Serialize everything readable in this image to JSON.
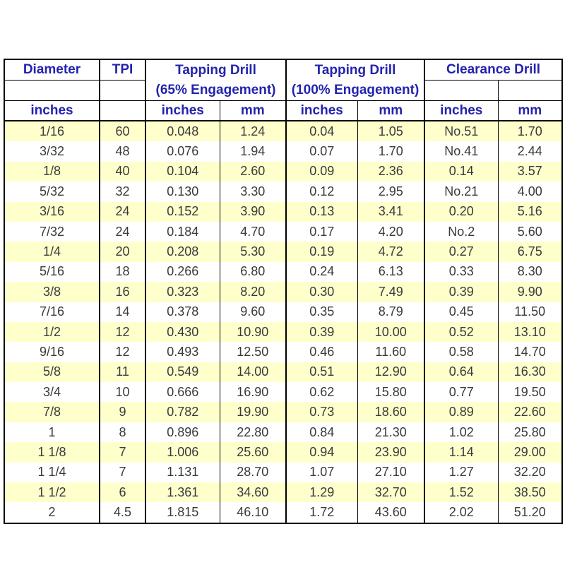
{
  "colors": {
    "header_text_blue": "#2323ae",
    "data_text": "#3a3a3a",
    "row_highlight_yellow": "#ffffcc",
    "grid_line": "#000000",
    "page_background": "#ffffff"
  },
  "chart_data": {
    "type": "table",
    "header": {
      "diameter": "Diameter",
      "tpi": "TPI",
      "tapping_65_title": "Tapping Drill",
      "tapping_65_subtitle": "(65% Engagement)",
      "tapping_100_title": "Tapping Drill",
      "tapping_100_subtitle": "(100% Engagement)",
      "clearance_title": "Clearance Drill",
      "diameter_unit": "inches",
      "unit_inches": "inches",
      "unit_mm": "mm"
    },
    "columns": [
      "Diameter inches",
      "TPI",
      "Tapping Drill (65% Engagement) inches",
      "Tapping Drill (65% Engagement) mm",
      "Tapping Drill (100% Engagement) inches",
      "Tapping Drill (100% Engagement) mm",
      "Clearance Drill inches",
      "Clearance Drill mm"
    ],
    "rows": [
      [
        "1/16",
        "60",
        "0.048",
        "1.24",
        "0.04",
        "1.05",
        "No.51",
        "1.70"
      ],
      [
        "3/32",
        "48",
        "0.076",
        "1.94",
        "0.07",
        "1.70",
        "No.41",
        "2.44"
      ],
      [
        "1/8",
        "40",
        "0.104",
        "2.60",
        "0.09",
        "2.36",
        "0.14",
        "3.57"
      ],
      [
        "5/32",
        "32",
        "0.130",
        "3.30",
        "0.12",
        "2.95",
        "No.21",
        "4.00"
      ],
      [
        "3/16",
        "24",
        "0.152",
        "3.90",
        "0.13",
        "3.41",
        "0.20",
        "5.16"
      ],
      [
        "7/32",
        "24",
        "0.184",
        "4.70",
        "0.17",
        "4.20",
        "No.2",
        "5.60"
      ],
      [
        "1/4",
        "20",
        "0.208",
        "5.30",
        "0.19",
        "4.72",
        "0.27",
        "6.75"
      ],
      [
        "5/16",
        "18",
        "0.266",
        "6.80",
        "0.24",
        "6.13",
        "0.33",
        "8.30"
      ],
      [
        "3/8",
        "16",
        "0.323",
        "8.20",
        "0.30",
        "7.49",
        "0.39",
        "9.90"
      ],
      [
        "7/16",
        "14",
        "0.378",
        "9.60",
        "0.35",
        "8.79",
        "0.45",
        "11.50"
      ],
      [
        "1/2",
        "12",
        "0.430",
        "10.90",
        "0.39",
        "10.00",
        "0.52",
        "13.10"
      ],
      [
        "9/16",
        "12",
        "0.493",
        "12.50",
        "0.46",
        "11.60",
        "0.58",
        "14.70"
      ],
      [
        "5/8",
        "11",
        "0.549",
        "14.00",
        "0.51",
        "12.90",
        "0.64",
        "16.30"
      ],
      [
        "3/4",
        "10",
        "0.666",
        "16.90",
        "0.62",
        "15.80",
        "0.77",
        "19.50"
      ],
      [
        "7/8",
        "9",
        "0.782",
        "19.90",
        "0.73",
        "18.60",
        "0.89",
        "22.60"
      ],
      [
        "1",
        "8",
        "0.896",
        "22.80",
        "0.84",
        "21.30",
        "1.02",
        "25.80"
      ],
      [
        "1 1/8",
        "7",
        "1.006",
        "25.60",
        "0.94",
        "23.90",
        "1.14",
        "29.00"
      ],
      [
        "1 1/4",
        "7",
        "1.131",
        "28.70",
        "1.07",
        "27.10",
        "1.27",
        "32.20"
      ],
      [
        "1 1/2",
        "6",
        "1.361",
        "34.60",
        "1.29",
        "32.70",
        "1.52",
        "38.50"
      ],
      [
        "2",
        "4.5",
        "1.815",
        "46.10",
        "1.72",
        "43.60",
        "2.02",
        "51.20"
      ]
    ]
  }
}
